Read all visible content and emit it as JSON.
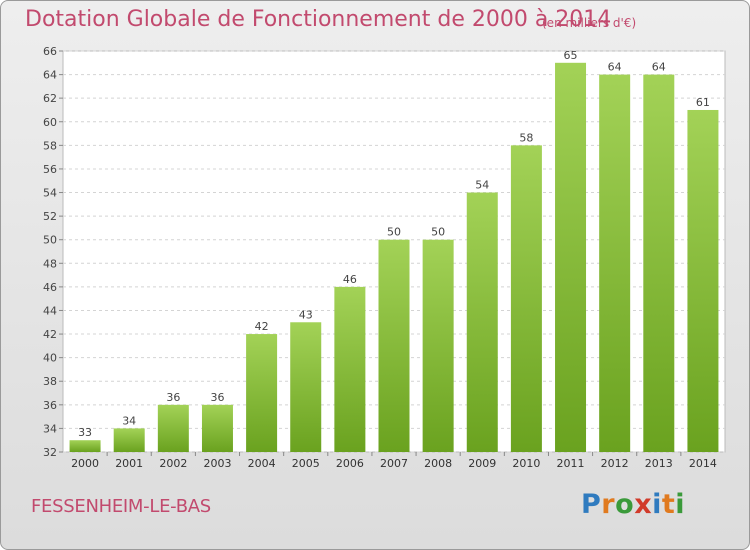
{
  "header": {
    "title": "Dotation Globale de Fonctionnement de 2000 à 2014",
    "subtitle": "(en milliers d'€)"
  },
  "footer": {
    "commune": "FESSENHEIM-LE-BAS",
    "logo_letters": [
      "P",
      "r",
      "o",
      "x",
      "i",
      "t",
      "i"
    ],
    "logo_colors": [
      "#2f7bbf",
      "#e07a1f",
      "#3a9a3a",
      "#d13a2a",
      "#2f7bbf",
      "#e07a1f",
      "#3a9a3a"
    ]
  },
  "chart_data": {
    "type": "bar",
    "categories": [
      "2000",
      "2001",
      "2002",
      "2003",
      "2004",
      "2005",
      "2006",
      "2007",
      "2008",
      "2009",
      "2010",
      "2011",
      "2012",
      "2013",
      "2014"
    ],
    "values": [
      33,
      34,
      36,
      36,
      42,
      43,
      46,
      50,
      50,
      54,
      58,
      65,
      64,
      64,
      61
    ],
    "data_labels": [
      "33",
      "34",
      "36",
      "36",
      "42",
      "43",
      "46",
      "50",
      "50",
      "54",
      "58",
      "65",
      "64",
      "64",
      "61"
    ],
    "ylim": [
      32,
      66
    ],
    "yticks": [
      "32",
      "34",
      "36",
      "38",
      "40",
      "42",
      "44",
      "46",
      "48",
      "50",
      "52",
      "54",
      "56",
      "58",
      "60",
      "62",
      "64",
      "66"
    ],
    "grid": true,
    "bar_color_top": "#a3d257",
    "bar_color_bottom": "#6aa21f"
  }
}
